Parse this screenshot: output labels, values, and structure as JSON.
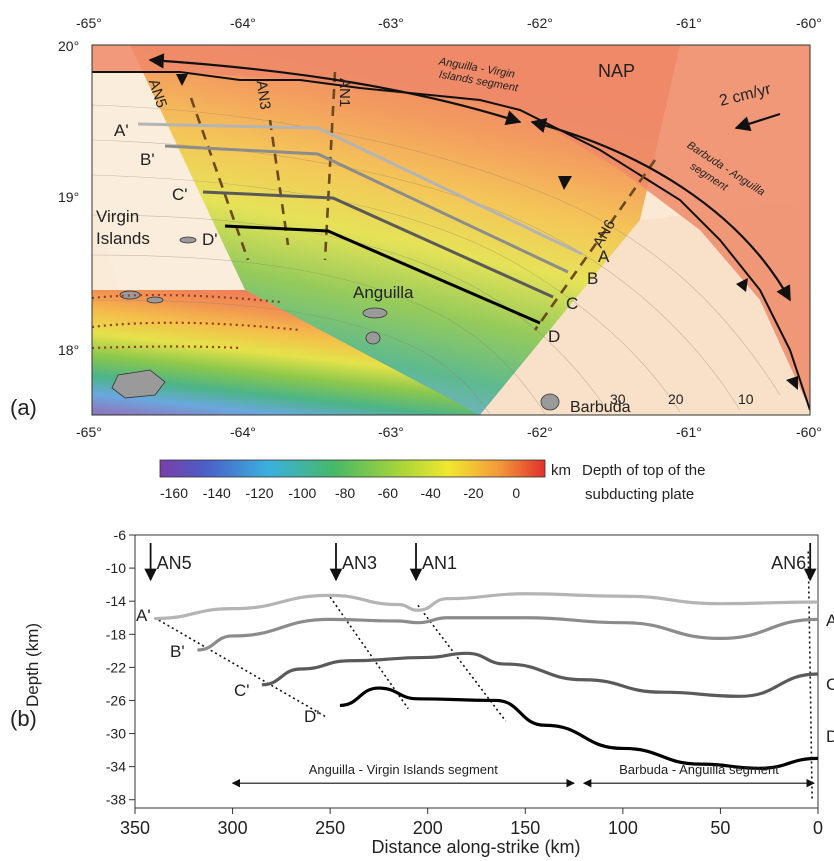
{
  "panel_a": {
    "label": "(a)",
    "lon_ticks": [
      "-65°",
      "-64°",
      "-63°",
      "-62°",
      "-61°",
      "-60°"
    ],
    "lat_ticks": [
      "20°",
      "19°",
      "18°"
    ],
    "places": {
      "virgin1": "Virgin",
      "virgin2": "Islands",
      "anguilla": "Anguilla",
      "barbuda": "Barbuda",
      "nap": "NAP"
    },
    "velocity": "2 cm/yr",
    "segments": {
      "avi1": "Anguilla - Virgin",
      "avi2": "Islands segment",
      "ba1": "Barbuda - Anguilla",
      "ba2": "segment"
    },
    "profiles": {
      "start": [
        "A'",
        "B'",
        "C'",
        "D'"
      ],
      "end": [
        "A",
        "B",
        "C",
        "D"
      ],
      "colors": [
        "#b4b4b4",
        "#8c8c8c",
        "#5a5a5a",
        "#000000"
      ]
    },
    "lines": [
      "AN5",
      "AN3",
      "AN1",
      "AN6"
    ],
    "contours": [
      "30",
      "20",
      "10"
    ]
  },
  "colorbar": {
    "ticks": [
      "-160",
      "-140",
      "-120",
      "-100",
      "-80",
      "-60",
      "-40",
      "-20",
      "0"
    ],
    "unit": "km",
    "title1": "Depth of top of the",
    "title2": "subducting plate"
  },
  "chart_data": {
    "type": "line",
    "label": "(b)",
    "xlabel": "Distance along-strike (km)",
    "ylabel": "Depth (km)",
    "xlim": [
      350,
      0
    ],
    "ylim": [
      -39,
      -6
    ],
    "x_ticks": [
      "350",
      "300",
      "250",
      "200",
      "150",
      "100",
      "50",
      "0"
    ],
    "y_ticks": [
      "-6",
      "-10",
      "-14",
      "-18",
      "-22",
      "-26",
      "-30",
      "-34",
      "-38"
    ],
    "series": [
      {
        "name": "A",
        "color": "#b4b4b4",
        "x": [
          340,
          300,
          250,
          215,
          205,
          190,
          150,
          100,
          50,
          0
        ],
        "y": [
          -16.1,
          -14.9,
          -13.3,
          -14.4,
          -15.1,
          -13.7,
          -13.1,
          -13.4,
          -14.3,
          -14.1
        ]
      },
      {
        "name": "B",
        "color": "#8c8c8c",
        "x": [
          318,
          300,
          250,
          215,
          205,
          190,
          150,
          100,
          50,
          0
        ],
        "y": [
          -19.9,
          -18.2,
          -16.2,
          -16.4,
          -16.6,
          -16.0,
          -16.0,
          -16.6,
          -18.5,
          -16.2
        ]
      },
      {
        "name": "C",
        "color": "#5a5a5a",
        "x": [
          285,
          265,
          240,
          200,
          180,
          160,
          120,
          80,
          40,
          0
        ],
        "y": [
          -24.1,
          -22.2,
          -21.2,
          -20.8,
          -20.3,
          -21.6,
          -23.5,
          -25.0,
          -25.5,
          -22.8
        ]
      },
      {
        "name": "D",
        "color": "#000000",
        "x": [
          245,
          225,
          205,
          165,
          140,
          100,
          60,
          30,
          0
        ],
        "y": [
          -26.6,
          -24.5,
          -25.8,
          -26.0,
          -29.0,
          -31.8,
          -33.7,
          -34.2,
          -33.0
        ]
      }
    ],
    "dotted_lines": [
      {
        "x": [
          340,
          252
        ],
        "y": [
          -16,
          -28
        ]
      },
      {
        "x": [
          250,
          210
        ],
        "y": [
          -13.5,
          -27
        ]
      },
      {
        "x": [
          205,
          160
        ],
        "y": [
          -14.5,
          -28.5
        ]
      },
      {
        "x": [
          5,
          3
        ],
        "y": [
          -8,
          -38
        ]
      }
    ],
    "arrows": [
      {
        "label": "AN5",
        "x": 342
      },
      {
        "label": "AN3",
        "x": 247
      },
      {
        "label": "AN1",
        "x": 206
      },
      {
        "label": "AN6",
        "x": 4
      }
    ],
    "profile_labels": [
      "A'",
      "B'",
      "C'",
      "D'"
    ],
    "profile_right_labels": [
      "A",
      "B",
      "C",
      "D"
    ],
    "segments": [
      {
        "label": "Anguilla - Virgin Islands segment",
        "from": 300,
        "to": 125
      },
      {
        "label": "Barbuda - Anguilla segment",
        "from": 120,
        "to": 2
      }
    ]
  }
}
